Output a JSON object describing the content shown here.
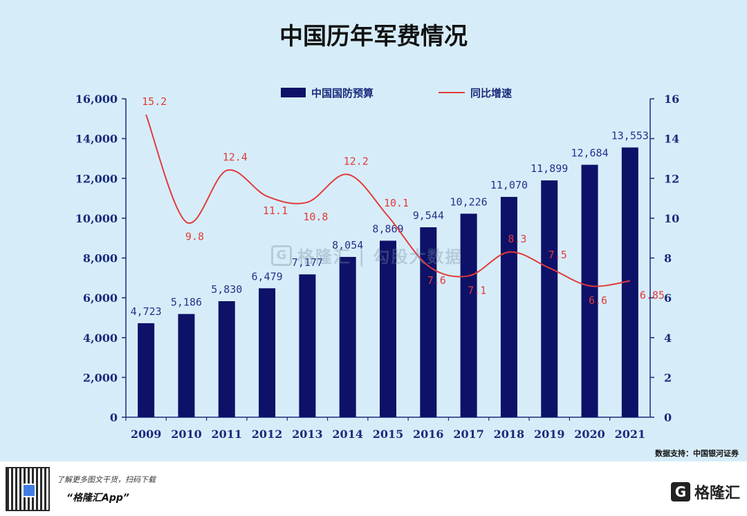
{
  "chart_data": {
    "type": "bar+line",
    "title": "中国历年军费情况",
    "categories": [
      "2009",
      "2010",
      "2011",
      "2012",
      "2013",
      "2014",
      "2015",
      "2016",
      "2017",
      "2018",
      "2019",
      "2020",
      "2021"
    ],
    "series": [
      {
        "name": "中国国防预算",
        "type": "bar",
        "axis": "left",
        "color": "#0d1168",
        "values": [
          4723,
          5186,
          5830,
          6479,
          7177,
          8054,
          8869,
          9544,
          10226,
          11070,
          11899,
          12684,
          13553
        ],
        "labels": [
          "4,723",
          "5,186",
          "5,830",
          "6,479",
          "7,177",
          "8,054",
          "8,869",
          "9,544",
          "10,226",
          "11,070",
          "11,899",
          "12,684",
          "13,553"
        ]
      },
      {
        "name": "同比增速",
        "type": "line",
        "axis": "right",
        "color": "#e23a3a",
        "values": [
          15.2,
          9.8,
          12.4,
          11.1,
          10.8,
          12.2,
          10.1,
          7.6,
          7.1,
          8.3,
          7.5,
          6.6,
          6.85
        ],
        "labels": [
          "15.2",
          "9.8",
          "12.4",
          "11.1",
          "10.8",
          "12.2",
          "10.1",
          "7.6",
          "7.1",
          "8.3",
          "7.5",
          "6.6",
          "6.85"
        ]
      }
    ],
    "y_left": {
      "range": [
        0,
        16000
      ],
      "ticks": [
        "0",
        "2,000",
        "4,000",
        "6,000",
        "8,000",
        "10,000",
        "12,000",
        "14,000",
        "16,000"
      ]
    },
    "y_right": {
      "range": [
        0,
        16
      ],
      "ticks": [
        "0",
        "2",
        "4",
        "6",
        "8",
        "10",
        "12",
        "14",
        "16"
      ]
    },
    "legend_position": "top-center",
    "grid": false
  },
  "source": "数据支持：中国银河证券",
  "watermark": {
    "mark": "G",
    "text": "格隆汇 | 勾股大数据"
  },
  "footer": {
    "line1": "了解更多图文干货，扫码下载",
    "line2": "“格隆汇App”",
    "brand_mark": "G",
    "brand_text": "格隆汇"
  },
  "colors": {
    "panel_bg": "#d6edf9",
    "bar": "#0d1168",
    "line": "#e23a3a",
    "axis_text": "#1b2a7a"
  }
}
